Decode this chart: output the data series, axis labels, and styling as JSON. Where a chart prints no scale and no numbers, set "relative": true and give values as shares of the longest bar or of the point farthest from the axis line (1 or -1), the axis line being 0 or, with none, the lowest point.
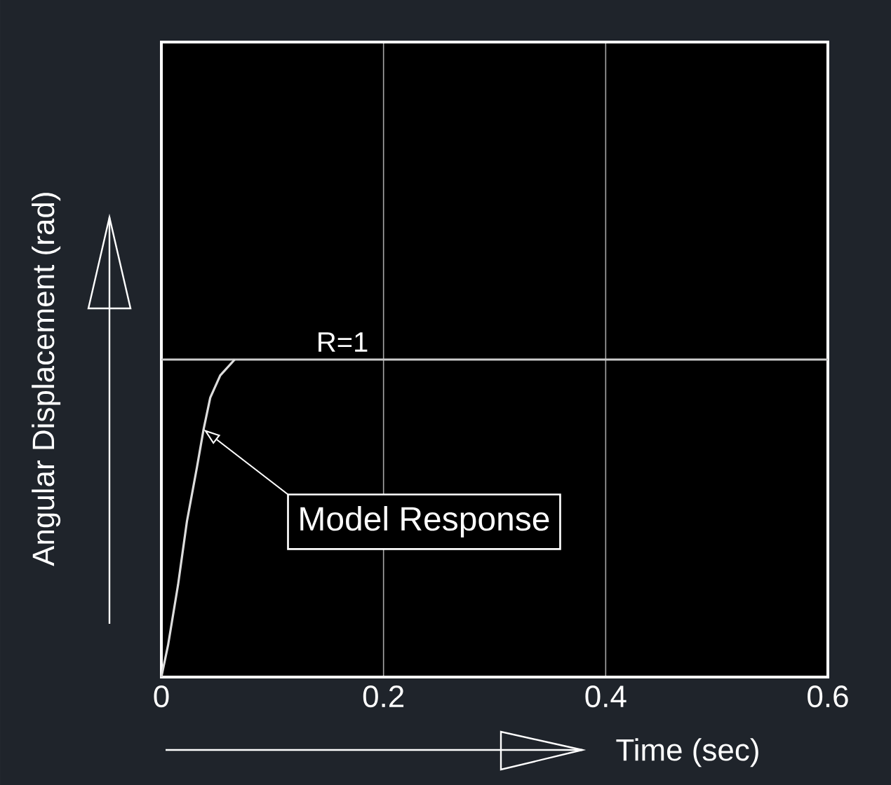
{
  "chart_data": {
    "type": "line",
    "xlabel": "Time (sec)",
    "ylabel": "Angular Displacement (rad)",
    "xlim": [
      0,
      0.6
    ],
    "relative": true,
    "xticks": [
      0,
      0.2,
      0.4,
      0.6
    ],
    "tick_labels": "x",
    "grid": "x",
    "series": [
      {
        "color": "#dddddd",
        "x": [
          0,
          0.006,
          0.015,
          0.023,
          0.032,
          0.038,
          0.044,
          0.053,
          0.066
        ],
        "values": [
          0,
          0.1,
          0.29,
          0.49,
          0.66,
          0.78,
          0.88,
          0.95,
          1.0
        ]
      }
    ],
    "ref_lines": [
      {
        "axis": "y",
        "value": 1,
        "label": "R=1",
        "color": "#cccccc"
      }
    ],
    "annotations": [
      "Model Response"
    ]
  }
}
